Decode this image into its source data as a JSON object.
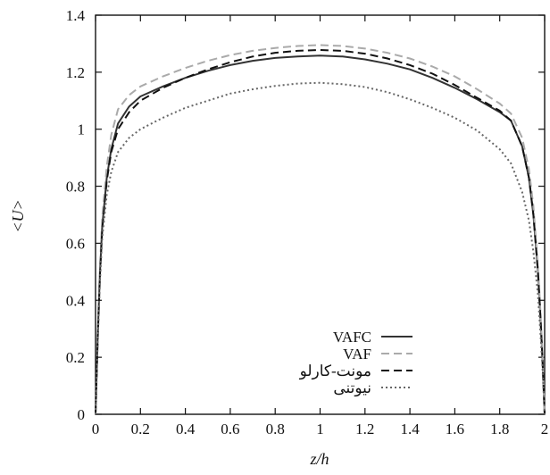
{
  "chart_data": {
    "type": "line",
    "title": "",
    "xlabel": "z/h",
    "ylabel": "<U>",
    "xlim": [
      0,
      2
    ],
    "ylim": [
      0,
      1.4
    ],
    "x_ticks": [
      "0",
      "0.2",
      "0.4",
      "0.6",
      "0.8",
      "1",
      "1.2",
      "1.4",
      "1.6",
      "1.8",
      "2"
    ],
    "y_ticks": [
      "0",
      "0.2",
      "0.4",
      "0.6",
      "0.8",
      "1",
      "1.2",
      "1.4"
    ],
    "grid": false,
    "legend_position": "bottom-right",
    "x": [
      0,
      0.01,
      0.02,
      0.03,
      0.05,
      0.07,
      0.1,
      0.15,
      0.2,
      0.3,
      0.4,
      0.5,
      0.6,
      0.7,
      0.8,
      0.9,
      1.0,
      1.1,
      1.2,
      1.3,
      1.4,
      1.5,
      1.6,
      1.7,
      1.8,
      1.85,
      1.9,
      1.93,
      1.95,
      1.97,
      1.98,
      1.99,
      2.0
    ],
    "series": [
      {
        "name": "VAFC",
        "color": "#333333",
        "style": "solid",
        "values": [
          0,
          0.28,
          0.5,
          0.66,
          0.83,
          0.93,
          1.02,
          1.08,
          1.115,
          1.15,
          1.18,
          1.205,
          1.225,
          1.24,
          1.25,
          1.255,
          1.258,
          1.255,
          1.245,
          1.23,
          1.21,
          1.18,
          1.145,
          1.105,
          1.06,
          1.03,
          0.94,
          0.83,
          0.7,
          0.5,
          0.36,
          0.2,
          0
        ]
      },
      {
        "name": "VAF",
        "color": "#aaaaaa",
        "style": "dashed",
        "values": [
          0,
          0.29,
          0.52,
          0.69,
          0.87,
          0.98,
          1.07,
          1.12,
          1.15,
          1.185,
          1.215,
          1.24,
          1.26,
          1.275,
          1.285,
          1.292,
          1.295,
          1.292,
          1.283,
          1.268,
          1.248,
          1.22,
          1.185,
          1.14,
          1.09,
          1.055,
          0.97,
          0.86,
          0.73,
          0.52,
          0.38,
          0.22,
          0
        ]
      },
      {
        "name": "مونت-کارلو",
        "color": "#111111",
        "style": "dashed",
        "values": [
          0,
          0.27,
          0.49,
          0.65,
          0.82,
          0.92,
          1.0,
          1.06,
          1.1,
          1.145,
          1.18,
          1.21,
          1.235,
          1.255,
          1.268,
          1.275,
          1.278,
          1.275,
          1.265,
          1.248,
          1.225,
          1.195,
          1.155,
          1.11,
          1.065,
          1.03,
          0.94,
          0.83,
          0.7,
          0.5,
          0.36,
          0.2,
          0
        ]
      },
      {
        "name": "نیوتنی",
        "color": "#666666",
        "style": "dotted",
        "values": [
          0,
          0.26,
          0.47,
          0.62,
          0.77,
          0.85,
          0.92,
          0.97,
          1.0,
          1.04,
          1.075,
          1.1,
          1.125,
          1.14,
          1.152,
          1.16,
          1.163,
          1.158,
          1.148,
          1.13,
          1.105,
          1.075,
          1.04,
          0.995,
          0.93,
          0.88,
          0.78,
          0.68,
          0.57,
          0.42,
          0.3,
          0.17,
          0
        ]
      }
    ]
  }
}
